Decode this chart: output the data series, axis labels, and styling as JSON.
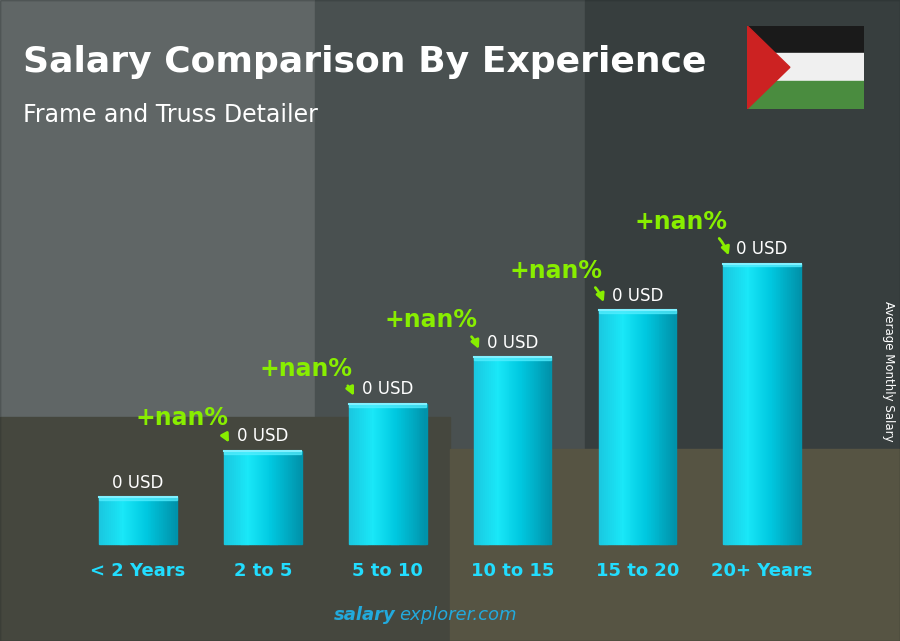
{
  "title": "Salary Comparison By Experience",
  "subtitle": "Frame and Truss Detailer",
  "categories": [
    "< 2 Years",
    "2 to 5",
    "5 to 10",
    "10 to 15",
    "15 to 20",
    "20+ Years"
  ],
  "values": [
    1,
    2,
    3,
    4,
    5,
    6
  ],
  "bar_face_color": "#1ac8e0",
  "bar_highlight_color": "#60e8f8",
  "bar_shadow_color": "#0090a8",
  "value_labels": [
    "0 USD",
    "0 USD",
    "0 USD",
    "0 USD",
    "0 USD",
    "0 USD"
  ],
  "pct_labels": [
    "+nan%",
    "+nan%",
    "+nan%",
    "+nan%",
    "+nan%"
  ],
  "title_color": "#ffffff",
  "subtitle_color": "#ffffff",
  "pct_color": "#88ee00",
  "xlabel_color": "#22ddff",
  "bg_color": "#5a6a70",
  "watermark_bold": "salary",
  "watermark_normal": "explorer.com",
  "watermark_color": "#22aadd",
  "side_label": "Average Monthly Salary",
  "title_fontsize": 26,
  "subtitle_fontsize": 17,
  "tick_fontsize": 13,
  "value_label_fontsize": 12,
  "pct_fontsize": 17,
  "flag_colors": [
    "#1a1a2e",
    "#ffffff",
    "#4a8c3f",
    "#cc2222"
  ],
  "bar_width": 0.62
}
